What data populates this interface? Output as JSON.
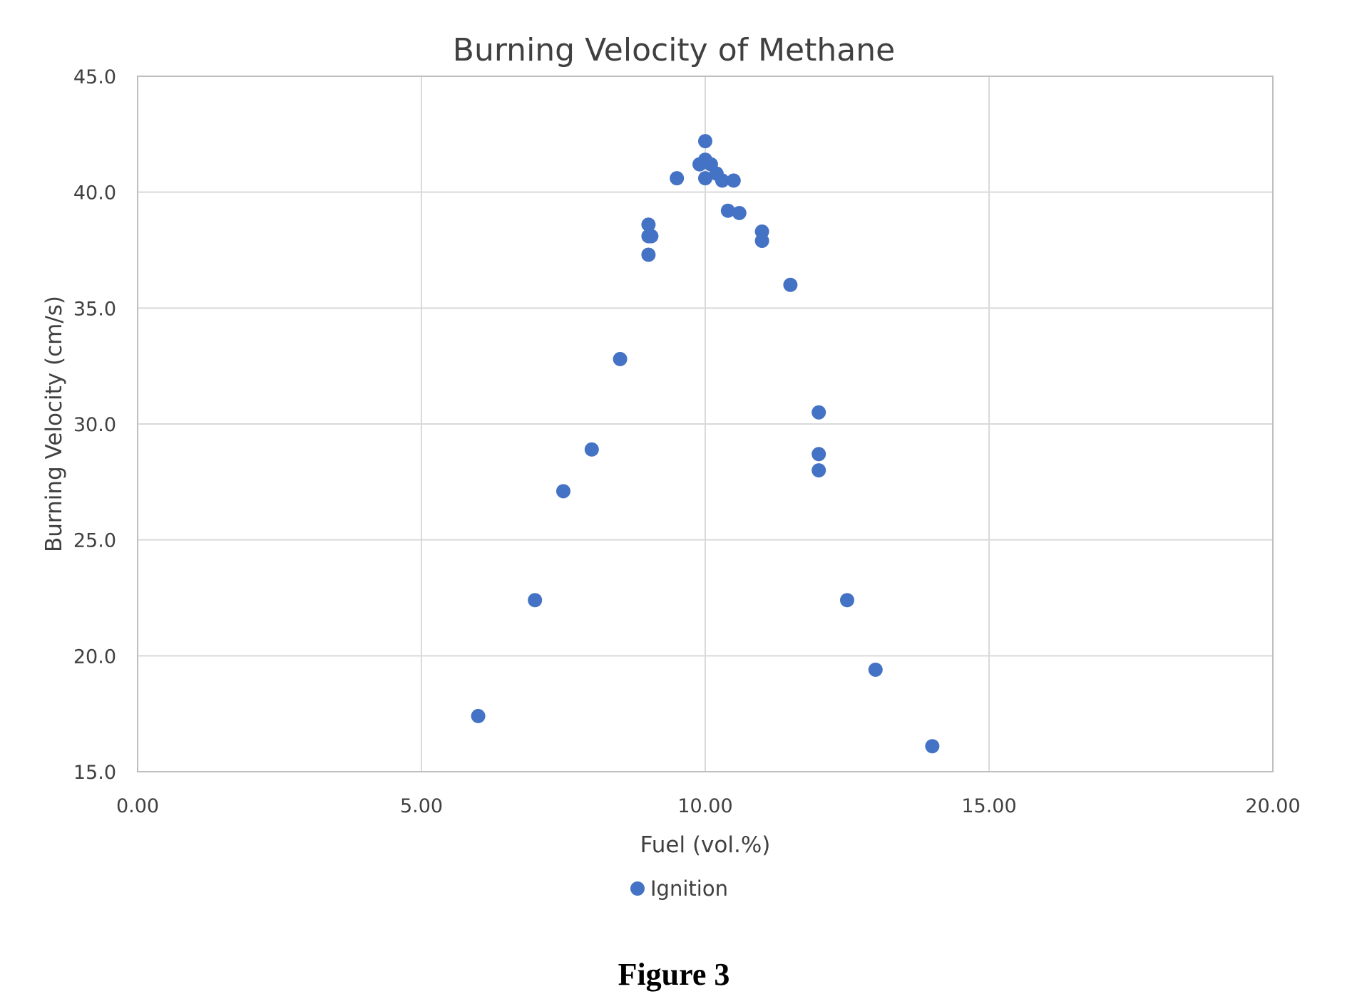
{
  "figure": {
    "caption": "Figure 3"
  },
  "chart_data": {
    "type": "scatter",
    "title": "Burning Velocity of Methane",
    "xlabel": "Fuel (vol.%)",
    "ylabel": "Burning Velocity (cm/s)",
    "xlim": [
      0,
      20
    ],
    "ylim": [
      15,
      45
    ],
    "x_ticks": [
      "0.00",
      "5.00",
      "10.00",
      "15.00",
      "20.00"
    ],
    "y_ticks": [
      "15.0",
      "20.0",
      "25.0",
      "30.0",
      "35.0",
      "40.0",
      "45.0"
    ],
    "grid": true,
    "legend_position": "bottom",
    "series": [
      {
        "name": "Ignition",
        "color": "#4472c4",
        "marker": "circle",
        "points": [
          {
            "x": 6.0,
            "y": 17.4
          },
          {
            "x": 7.0,
            "y": 22.4
          },
          {
            "x": 7.5,
            "y": 27.1
          },
          {
            "x": 8.0,
            "y": 28.9
          },
          {
            "x": 8.5,
            "y": 32.8
          },
          {
            "x": 9.0,
            "y": 37.3
          },
          {
            "x": 9.0,
            "y": 38.1
          },
          {
            "x": 9.05,
            "y": 38.1
          },
          {
            "x": 9.0,
            "y": 38.6
          },
          {
            "x": 9.5,
            "y": 40.6
          },
          {
            "x": 9.9,
            "y": 41.2
          },
          {
            "x": 10.0,
            "y": 41.4
          },
          {
            "x": 10.0,
            "y": 42.2
          },
          {
            "x": 10.0,
            "y": 40.6
          },
          {
            "x": 10.1,
            "y": 41.2
          },
          {
            "x": 10.2,
            "y": 40.8
          },
          {
            "x": 10.3,
            "y": 40.5
          },
          {
            "x": 10.4,
            "y": 39.2
          },
          {
            "x": 10.5,
            "y": 40.5
          },
          {
            "x": 10.6,
            "y": 39.1
          },
          {
            "x": 11.0,
            "y": 38.3
          },
          {
            "x": 11.0,
            "y": 37.9
          },
          {
            "x": 11.5,
            "y": 36.0
          },
          {
            "x": 12.0,
            "y": 30.5
          },
          {
            "x": 12.0,
            "y": 28.7
          },
          {
            "x": 12.0,
            "y": 28.0
          },
          {
            "x": 12.5,
            "y": 22.4
          },
          {
            "x": 13.0,
            "y": 19.4
          },
          {
            "x": 14.0,
            "y": 16.1
          }
        ]
      }
    ]
  }
}
